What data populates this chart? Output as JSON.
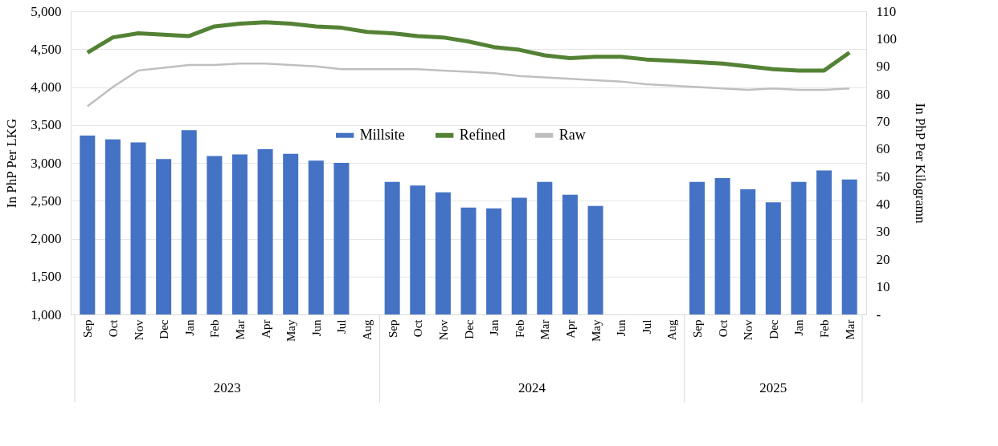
{
  "chart_data": {
    "type": "bar",
    "categories": [
      "Sep",
      "Oct",
      "Nov",
      "Dec",
      "Jan",
      "Feb",
      "Mar",
      "Apr",
      "May",
      "Jun",
      "Jul",
      "Aug",
      "Sep",
      "Oct",
      "Nov",
      "Dec",
      "Jan",
      "Feb",
      "Mar",
      "Apr",
      "May",
      "Jun",
      "Jul",
      "Aug",
      "Sep",
      "Oct",
      "Nov",
      "Dec",
      "Jan",
      "Feb",
      "Mar"
    ],
    "series": [
      {
        "name": "Millsite",
        "color": "#4472c4",
        "values": [
          3360,
          3310,
          3270,
          3050,
          3430,
          3090,
          3110,
          3180,
          3120,
          3030,
          3000,
          null,
          2750,
          2700,
          2610,
          2410,
          2400,
          2540,
          2750,
          2580,
          2430,
          null,
          null,
          null,
          2750,
          2800,
          2650,
          2480,
          2750,
          2900,
          2780
        ]
      },
      {
        "name": "Refined",
        "type": "line",
        "axis": "y2",
        "color": "#548235",
        "values": [
          95,
          100.5,
          102,
          101.5,
          101,
          104.5,
          105.5,
          106,
          105.5,
          104.5,
          104,
          102.5,
          102,
          101,
          100.5,
          99,
          97,
          96,
          94,
          93,
          93.5,
          93.5,
          92.5,
          92,
          91.5,
          91,
          90,
          89,
          88.5,
          88.5,
          95
        ]
      },
      {
        "name": "Raw",
        "type": "line",
        "axis": "y2",
        "color": "#bfbfbf",
        "values": [
          75.5,
          82.5,
          88.5,
          89.5,
          90.5,
          90.5,
          91,
          91,
          90.5,
          90,
          89,
          89,
          89,
          89,
          88.5,
          88,
          87.5,
          86.5,
          86,
          85.5,
          85,
          84.5,
          83.5,
          83,
          82.5,
          82,
          81.5,
          82,
          81.5,
          81.5,
          82
        ]
      }
    ],
    "ylabel": "In PhP Per LKG",
    "y2label": "In PhP Per Kilogramn",
    "ylim": [
      1000,
      5000
    ],
    "yticks": [
      {
        "value": 1000,
        "label": "1,000"
      },
      {
        "value": 1500,
        "label": "1,500"
      },
      {
        "value": 2000,
        "label": "2,000"
      },
      {
        "value": 2500,
        "label": "2,500"
      },
      {
        "value": 3000,
        "label": "3,000"
      },
      {
        "value": 3500,
        "label": "3,500"
      },
      {
        "value": 4000,
        "label": "4,000"
      },
      {
        "value": 4500,
        "label": "4,500"
      },
      {
        "value": 5000,
        "label": "5,000"
      }
    ],
    "y2lim": [
      0,
      110
    ],
    "y2ticks": [
      {
        "value": 0,
        "label": "-"
      },
      10,
      20,
      30,
      40,
      50,
      60,
      70,
      80,
      90,
      100,
      110
    ],
    "annotations": [
      "2023",
      "2024",
      "2025"
    ],
    "grid": "y",
    "legend": "top",
    "marker": "none",
    "line_style": "solid"
  }
}
